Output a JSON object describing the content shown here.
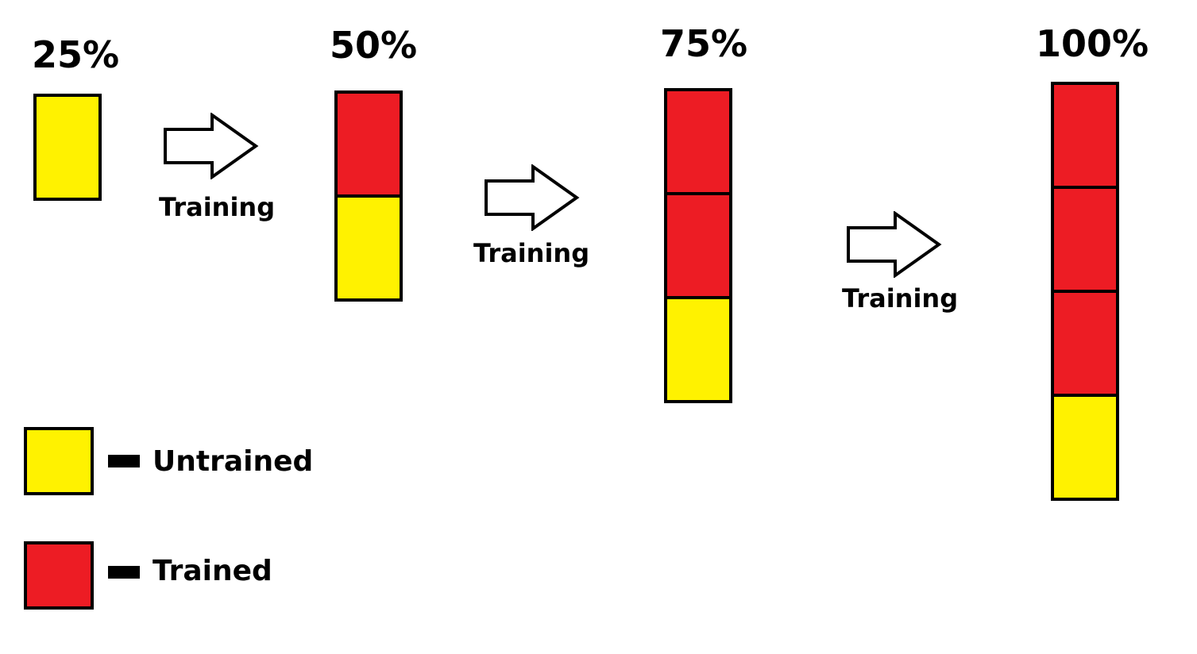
{
  "colors": {
    "trained": "#ed1c24",
    "untrained": "#fff200",
    "outline": "#000000"
  },
  "stages": [
    {
      "label": "25%",
      "blocks": [
        "untrained"
      ]
    },
    {
      "label": "50%",
      "blocks": [
        "trained",
        "untrained"
      ]
    },
    {
      "label": "75%",
      "blocks": [
        "trained",
        "trained",
        "untrained"
      ]
    },
    {
      "label": "100%",
      "blocks": [
        "trained",
        "trained",
        "trained",
        "untrained"
      ]
    }
  ],
  "arrows": [
    {
      "label": "Training"
    },
    {
      "label": "Training"
    },
    {
      "label": "Training"
    }
  ],
  "legend": {
    "untrained_label": "Untrained",
    "trained_label": "Trained"
  }
}
